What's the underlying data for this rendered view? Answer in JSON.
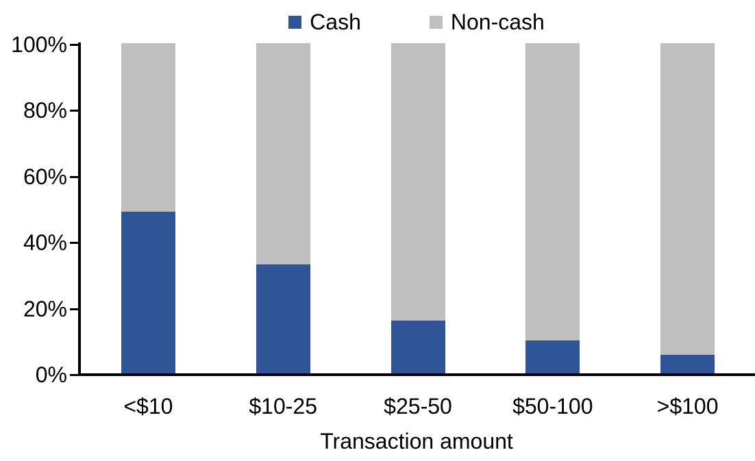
{
  "chart_data": {
    "type": "bar",
    "stacking": "percent",
    "orientation": "vertical",
    "title": "",
    "categories": [
      "<$10",
      "$10-25",
      "$25-50",
      "$50-100",
      ">$100"
    ],
    "series": [
      {
        "name": "Cash",
        "color": "#2F5597",
        "values": [
          49,
          33,
          16,
          10,
          5.5
        ]
      },
      {
        "name": "Non-cash",
        "color": "#BFBFBF",
        "values": [
          51,
          67,
          84,
          90,
          94.5
        ]
      }
    ],
    "xlabel": "Transaction amount",
    "ylabel": "",
    "ylim": [
      0,
      100
    ],
    "yticks": [
      0,
      20,
      40,
      60,
      80,
      100
    ],
    "ytick_suffix": "%",
    "legend_position": "top-center",
    "grid": false,
    "axis_color": "#000000",
    "background": "#FFFFFF"
  }
}
